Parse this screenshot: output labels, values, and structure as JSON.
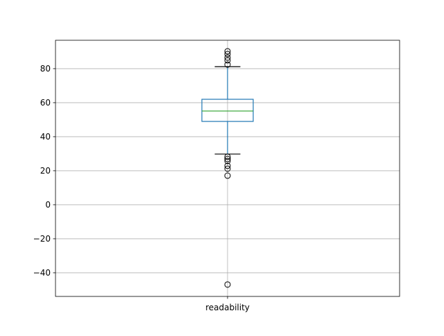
{
  "chart_data": {
    "type": "box",
    "categories": [
      "readability"
    ],
    "series": [
      {
        "color": "#1f77b4",
        "median_color": "#2ca02c",
        "whislo": 29.8,
        "q1": 49,
        "med": 55.1,
        "q3": 62,
        "whishi": 81.2,
        "fliers": [
          90.2,
          88.6,
          86.5,
          84.9,
          82.4,
          28.2,
          26.9,
          25.7,
          22.9,
          21.2,
          17.1,
          -46.9
        ]
      }
    ],
    "ylim": [
      -53.9,
      96.7
    ],
    "yticks": [
      {
        "value": -40,
        "label": "−40"
      },
      {
        "value": -20,
        "label": "−20"
      },
      0,
      20,
      40,
      60,
      80
    ],
    "grid": true
  }
}
